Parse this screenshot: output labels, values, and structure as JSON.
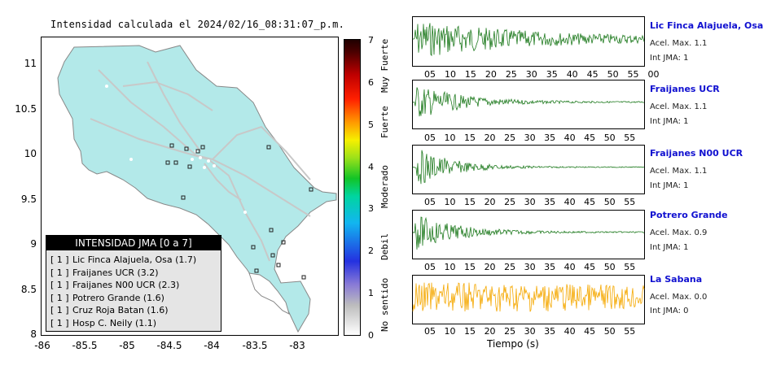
{
  "map": {
    "title": "Intensidad calculada el 2024/02/16_08:31:07_p.m.",
    "y_ticks": [
      "11",
      "10.5",
      "10",
      "9.5",
      "9",
      "8.5",
      "8"
    ],
    "x_ticks": [
      "-86",
      "-85.5",
      "-85",
      "-84.5",
      "-84",
      "-83.5",
      "-83"
    ]
  },
  "legend": {
    "title": "INTENSIDAD JMA [0 a 7]",
    "items": [
      {
        "level": "[ 1 ]",
        "name": "Lic Finca Alajuela, Osa (1.7)"
      },
      {
        "level": "[ 1 ]",
        "name": "Fraijanes UCR (3.2)"
      },
      {
        "level": "[ 1 ]",
        "name": "Fraijanes N00 UCR (2.3)"
      },
      {
        "level": "[ 1 ]",
        "name": "Potrero Grande (1.6)"
      },
      {
        "level": "[ 1 ]",
        "name": "Cruz Roja Batan (1.6)"
      },
      {
        "level": "[ 1 ]",
        "name": "Hosp C. Neily (1.1)"
      }
    ]
  },
  "colorbar": {
    "ticks": [
      "7",
      "6",
      "5",
      "4",
      "3",
      "2",
      "1",
      "0"
    ],
    "categories": [
      "Muy Fuerte",
      "Fuerte",
      "Moderado",
      "Debil",
      "No sentido"
    ]
  },
  "stations": [
    {
      "name": "Lic Finca Alajuela, Osa",
      "accel": "Acel. Max. 1.1",
      "intensity": "Int JMA: 1",
      "color": "#1e7a1e",
      "ticks": [
        "05",
        "10",
        "15",
        "20",
        "25",
        "30",
        "35",
        "40",
        "45",
        "50",
        "55",
        "00"
      ]
    },
    {
      "name": "Fraijanes UCR",
      "accel": "Acel. Max. 1.1",
      "intensity": "Int JMA: 1",
      "color": "#1e7a1e",
      "ticks": [
        "05",
        "10",
        "15",
        "20",
        "25",
        "30",
        "35",
        "40",
        "45",
        "50",
        "55"
      ]
    },
    {
      "name": "Fraijanes N00 UCR",
      "accel": "Acel. Max. 1.1",
      "intensity": "Int JMA: 1",
      "color": "#1e7a1e",
      "ticks": [
        "05",
        "10",
        "15",
        "20",
        "25",
        "30",
        "35",
        "40",
        "45",
        "50",
        "55"
      ]
    },
    {
      "name": "Potrero Grande",
      "accel": "Acel. Max. 0.9",
      "intensity": "Int JMA: 1",
      "color": "#1e7a1e",
      "ticks": [
        "05",
        "10",
        "15",
        "20",
        "25",
        "30",
        "35",
        "40",
        "45",
        "50",
        "55"
      ]
    },
    {
      "name": "La Sabana",
      "accel": "Acel. Max. 0.0",
      "intensity": "Int JMA: 0",
      "color": "#f5a800",
      "ticks": [
        "05",
        "10",
        "15",
        "20",
        "25",
        "30",
        "35",
        "40",
        "45",
        "50",
        "55"
      ]
    }
  ],
  "time_axis_label": "Tiempo (s)"
}
